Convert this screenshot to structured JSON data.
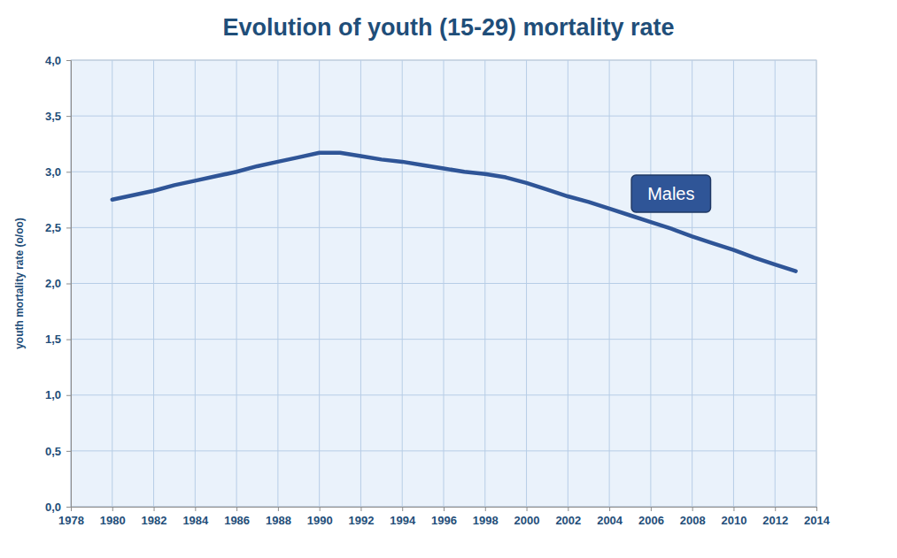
{
  "chart_data": {
    "type": "line",
    "title": "Evolution of youth (15-29) mortality rate",
    "y_label": "youth mortality rate (o/oo)",
    "x": [
      1980,
      1981,
      1982,
      1983,
      1984,
      1985,
      1986,
      1987,
      1988,
      1989,
      1990,
      1991,
      1992,
      1993,
      1994,
      1995,
      1996,
      1997,
      1998,
      1999,
      2000,
      2001,
      2002,
      2003,
      2004,
      2005,
      2006,
      2007,
      2008,
      2009,
      2010,
      2011,
      2012,
      2013
    ],
    "series": [
      {
        "name": "Males",
        "color": "#2f5597",
        "values": [
          2.75,
          2.79,
          2.83,
          2.88,
          2.92,
          2.96,
          3.0,
          3.05,
          3.09,
          3.13,
          3.17,
          3.17,
          3.14,
          3.11,
          3.09,
          3.06,
          3.03,
          3.0,
          2.98,
          2.95,
          2.9,
          2.84,
          2.78,
          2.73,
          2.67,
          2.61,
          2.55,
          2.49,
          2.42,
          2.36,
          2.3,
          2.23,
          2.17,
          2.11
        ]
      }
    ],
    "xlim": [
      1978,
      2014
    ],
    "xticks": [
      1978,
      1980,
      1982,
      1984,
      1986,
      1988,
      1990,
      1992,
      1994,
      1996,
      1998,
      2000,
      2002,
      2004,
      2006,
      2008,
      2010,
      2012,
      2014
    ],
    "ylim": [
      0,
      4
    ],
    "yticks": [
      {
        "value": 0,
        "label": "0,0"
      },
      {
        "value": 0.5,
        "label": "0,5"
      },
      {
        "value": 1,
        "label": "1,0"
      },
      {
        "value": 1.5,
        "label": "1,5"
      },
      {
        "value": 2,
        "label": "2,0"
      },
      {
        "value": 2.5,
        "label": "2,5"
      },
      {
        "value": 3,
        "label": "3,0"
      },
      {
        "value": 3.5,
        "label": "3,5"
      },
      {
        "value": 4,
        "label": "4,0"
      }
    ],
    "grid": true
  }
}
